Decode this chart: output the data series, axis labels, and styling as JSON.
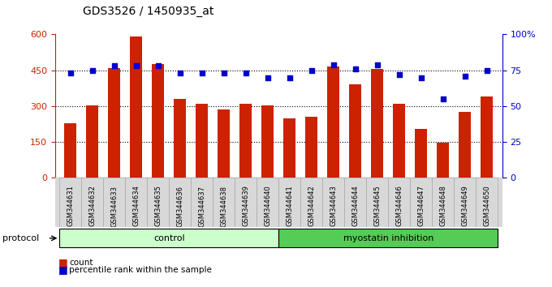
{
  "title": "GDS3526 / 1450935_at",
  "samples": [
    "GSM344631",
    "GSM344632",
    "GSM344633",
    "GSM344634",
    "GSM344635",
    "GSM344636",
    "GSM344637",
    "GSM344638",
    "GSM344639",
    "GSM344640",
    "GSM344641",
    "GSM344642",
    "GSM344643",
    "GSM344644",
    "GSM344645",
    "GSM344646",
    "GSM344647",
    "GSM344648",
    "GSM344649",
    "GSM344650"
  ],
  "counts": [
    230,
    305,
    460,
    590,
    475,
    330,
    310,
    285,
    310,
    305,
    250,
    255,
    465,
    390,
    455,
    310,
    205,
    148,
    275,
    340
  ],
  "percentiles": [
    73,
    75,
    78,
    78,
    78,
    73,
    73,
    73,
    73,
    70,
    70,
    75,
    79,
    76,
    79,
    72,
    70,
    55,
    71,
    75
  ],
  "bar_color": "#cc2200",
  "dot_color": "#0000cc",
  "bg_color": "#ffffff",
  "ylim_left": [
    0,
    600
  ],
  "ylim_right": [
    0,
    100
  ],
  "yticks_left": [
    0,
    150,
    300,
    450,
    600
  ],
  "ytick_labels_left": [
    "0",
    "150",
    "300",
    "450",
    "600"
  ],
  "yticks_right": [
    0,
    25,
    50,
    75,
    100
  ],
  "ytick_labels_right": [
    "0",
    "25",
    "50",
    "75",
    "100%"
  ],
  "control_color": "#ccffcc",
  "myostatin_color": "#55cc55",
  "xticklabel_bg": "#d8d8d8",
  "legend_count": "count",
  "legend_percentile": "percentile rank within the sample",
  "n_control": 10,
  "n_myo": 10
}
